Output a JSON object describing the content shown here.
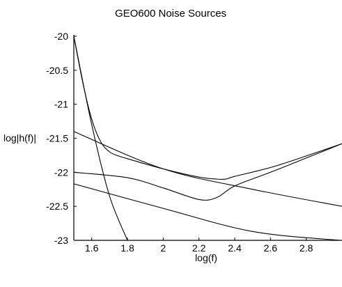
{
  "chart_data": {
    "type": "line",
    "title": "GEO600 Noise Sources",
    "xlabel": "log(f)",
    "ylabel": "log|h(f)|",
    "xlim": [
      1.5,
      3.0
    ],
    "ylim": [
      -23,
      -20
    ],
    "x_ticks": [
      1.6,
      1.8,
      2,
      2.2,
      2.4,
      2.6,
      2.8
    ],
    "x_tick_labels": [
      "1.6",
      "1.8",
      "2",
      "2.2",
      "2.4",
      "2.6",
      "2.8"
    ],
    "y_ticks": [
      -20,
      -20.5,
      -21,
      -21.5,
      -22,
      -22.5,
      -23
    ],
    "y_tick_labels": [
      "-20",
      "-20.5",
      "-21",
      "-21.5",
      "-22",
      "-22.5",
      "-23"
    ],
    "grid": false,
    "legend": "none",
    "series": [
      {
        "x": [
          1.5,
          1.6,
          1.7,
          1.8
        ],
        "y": [
          -20.0,
          -21.3,
          -22.35,
          -23.0
        ]
      },
      {
        "x": [
          1.5,
          2.0,
          2.5,
          3.0
        ],
        "y": [
          -21.4,
          -21.95,
          -22.25,
          -22.5
        ]
      },
      {
        "x": [
          1.5,
          2.0,
          2.5,
          2.99
        ],
        "y": [
          -22.17,
          -22.53,
          -22.87,
          -23.0
        ]
      },
      {
        "x": [
          1.5,
          1.8,
          2.0,
          2.2,
          2.3,
          2.4,
          2.6,
          2.8,
          3.0
        ],
        "y": [
          -22.0,
          -22.08,
          -22.23,
          -22.4,
          -22.37,
          -22.2,
          -22.0,
          -21.79,
          -21.58
        ]
      },
      {
        "x": [
          1.5,
          1.55,
          1.6,
          1.65,
          1.7,
          1.75,
          1.8,
          2.0,
          2.2,
          2.3,
          2.35,
          2.4,
          2.6,
          2.8,
          3.0
        ],
        "y": [
          -20.0,
          -20.68,
          -21.22,
          -21.55,
          -21.7,
          -21.76,
          -21.8,
          -21.95,
          -22.07,
          -22.1,
          -22.1,
          -22.06,
          -21.93,
          -21.76,
          -21.58
        ]
      }
    ]
  }
}
